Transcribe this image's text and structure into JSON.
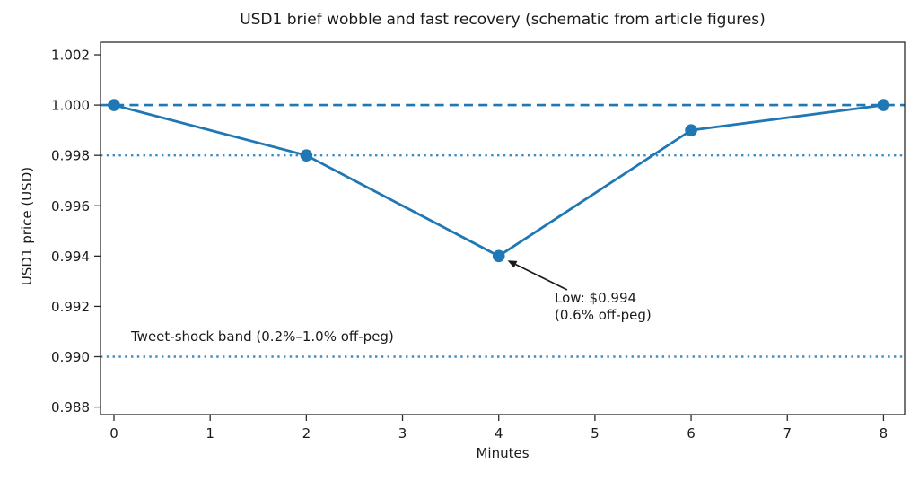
{
  "figure": {
    "background": "#ffffff",
    "text_color": "#1a1a1a",
    "spine_color": "#2b2b2b"
  },
  "chart_data": {
    "type": "line",
    "title": "USD1 brief wobble and fast recovery (schematic from article figures)",
    "xlabel": "Minutes",
    "ylabel": "USD1 price (USD)",
    "series": [
      {
        "name": "USD1 price",
        "x": [
          0,
          2,
          4,
          6,
          8
        ],
        "y": [
          1.0,
          0.998,
          0.994,
          0.999,
          1.0
        ],
        "color": "#1f77b4",
        "marker": "circle"
      }
    ],
    "xlim": [
      -0.14,
      8.22
    ],
    "ylim": [
      0.9877,
      1.0025
    ],
    "xticks": [
      0,
      1,
      2,
      3,
      4,
      5,
      6,
      7,
      8
    ],
    "xtick_labels": [
      "0",
      "1",
      "2",
      "3",
      "4",
      "5",
      "6",
      "7",
      "8"
    ],
    "yticks": [
      0.988,
      0.99,
      0.992,
      0.994,
      0.996,
      0.998,
      1.0,
      1.002
    ],
    "ytick_labels": [
      "0.988",
      "0.990",
      "0.992",
      "0.994",
      "0.996",
      "0.998",
      "1.000",
      "1.002"
    ],
    "grid": false,
    "legend": null,
    "ref_lines": [
      {
        "name": "peg-line",
        "y": 1.0,
        "style": "dashed",
        "color": "#1f77b4"
      },
      {
        "name": "band-upper-line",
        "y": 0.998,
        "style": "dotted",
        "color": "#1f77b4"
      },
      {
        "name": "band-lower-line",
        "y": 0.99,
        "style": "dotted",
        "color": "#1f77b4"
      }
    ],
    "annotation": {
      "lines": [
        "Low: $0.994",
        "(0.6% off-peg)"
      ],
      "xy": [
        4,
        0.994
      ],
      "text_xy": [
        4.58,
        0.99205
      ],
      "arrow_color": "#1a1a1a"
    },
    "band_label": {
      "text": "Tweet-shock band (0.2%–1.0% off-peg)",
      "xy": [
        0.2,
        0.9907
      ]
    }
  }
}
